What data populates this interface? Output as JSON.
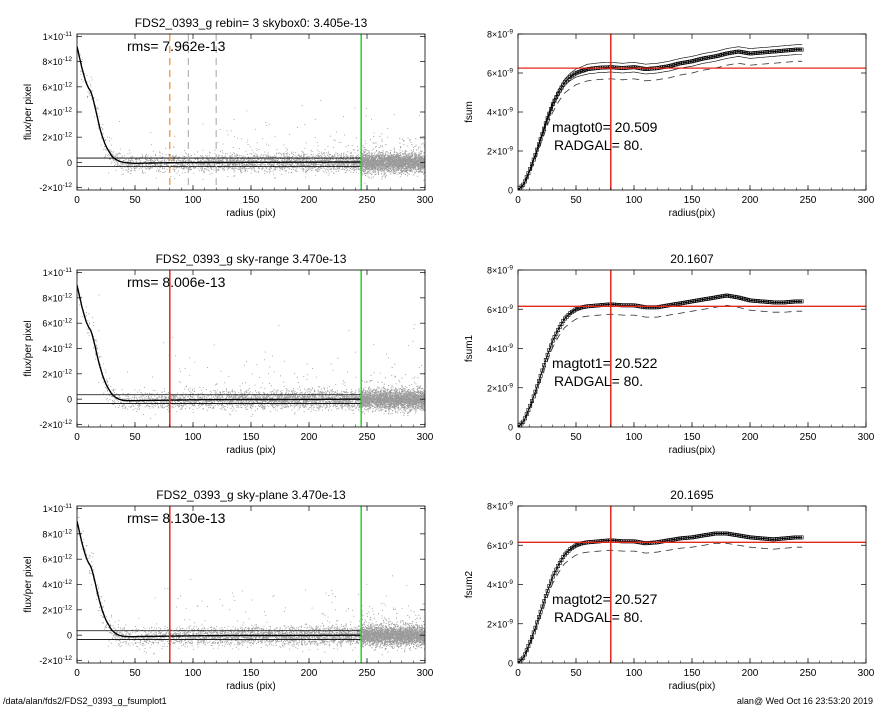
{
  "footer": {
    "path": "/data/alan/fds2/FDS2_0393_g_fsumplot1",
    "user_date": "alan@  Wed Oct 16 23:53:20 2019"
  },
  "colors": {
    "red_line": "#e8261c",
    "green_line": "#1ed81e",
    "orange_dash": "#f08c1e",
    "scatter": "#9a9a9a"
  },
  "chart_data": [
    {
      "type": "scatter",
      "title": "FDS2_0393_g rebin= 3    skybox0:  3.405e-13",
      "annotation": "rms= 7.962e-13",
      "xlabel": "radius (pix)",
      "ylabel": "flux/per pixel",
      "xlim": [
        0,
        300
      ],
      "ylim": [
        -2.2e-12,
        1.02e-11
      ],
      "xticks": [
        0,
        50,
        100,
        150,
        200,
        250,
        300
      ],
      "yticks": [
        {
          "value": 1e-11,
          "base": "1×10",
          "exp": "-11"
        },
        {
          "value": 8e-12,
          "base": "8×10",
          "exp": "-12"
        },
        {
          "value": 6e-12,
          "base": "6×10",
          "exp": "-12"
        },
        {
          "value": 4e-12,
          "base": "4×10",
          "exp": "-12"
        },
        {
          "value": 2e-12,
          "base": "2×10",
          "exp": "-12"
        },
        {
          "value": 0,
          "base": "0",
          "exp": ""
        },
        {
          "value": -2e-12,
          "base": "-2×10",
          "exp": "-12"
        }
      ],
      "profile_x": [
        0,
        2,
        4,
        6,
        8,
        10,
        12,
        14,
        16,
        18,
        20,
        22,
        24,
        26,
        28,
        30,
        33,
        36,
        40,
        45,
        50,
        60,
        80,
        100,
        150,
        200,
        245
      ],
      "profile_y": [
        9.2e-12,
        8.4e-12,
        7.6e-12,
        6.9e-12,
        6.3e-12,
        5.9e-12,
        5.6e-12,
        5e-12,
        4.2e-12,
        3.4e-12,
        2.6e-12,
        2e-12,
        1.5e-12,
        1.1e-12,
        8e-13,
        5e-13,
        2.5e-13,
        1e-13,
        0,
        -5e-14,
        -8e-14,
        -6e-14,
        -3e-14,
        -2e-14,
        0,
        1e-14,
        2e-14
      ],
      "hlines": [
        3.405e-13,
        -3.405e-13
      ],
      "vlines": [
        {
          "x": 80,
          "color": "#f08c1e",
          "style": "dashed"
        },
        {
          "x": 96,
          "color": "#b4b4b4",
          "style": "dashed"
        },
        {
          "x": 120,
          "color": "#b4b4b4",
          "style": "dashed"
        },
        {
          "x": 245,
          "color": "#1ed81e",
          "style": "solid"
        }
      ],
      "scatter_color": "#9a9a9a",
      "noise_sigma": 8e-13
    },
    {
      "type": "line",
      "title": "",
      "ylabel": "fsum",
      "xlabel": "radius(pix)",
      "xlim": [
        0,
        300
      ],
      "ylim": [
        0,
        8e-09
      ],
      "xticks": [
        0,
        50,
        100,
        150,
        200,
        250,
        300
      ],
      "yticks": [
        {
          "value": 8e-09,
          "base": "8×10",
          "exp": "-9"
        },
        {
          "value": 6e-09,
          "base": "6×10",
          "exp": "-9"
        },
        {
          "value": 4e-09,
          "base": "4×10",
          "exp": "-9"
        },
        {
          "value": 2e-09,
          "base": "2×10",
          "exp": "-9"
        },
        {
          "value": 0,
          "base": "0",
          "exp": ""
        }
      ],
      "annotations": [
        "magtot0=  20.509",
        "RADGAL=     80."
      ],
      "x": [
        0,
        5,
        10,
        15,
        20,
        25,
        30,
        35,
        40,
        45,
        50,
        55,
        60,
        70,
        80,
        90,
        100,
        110,
        120,
        130,
        140,
        150,
        160,
        170,
        180,
        190,
        200,
        210,
        220,
        230,
        240,
        245
      ],
      "y": [
        0,
        3e-10,
        1e-09,
        1.8e-09,
        2.7e-09,
        3.6e-09,
        4.4e-09,
        5e-09,
        5.5e-09,
        5.8e-09,
        6e-09,
        6.1e-09,
        6.2e-09,
        6.27e-09,
        6.3e-09,
        6.25e-09,
        6.3e-09,
        6.2e-09,
        6.25e-09,
        6.35e-09,
        6.5e-09,
        6.6e-09,
        6.75e-09,
        6.85e-09,
        7e-09,
        7.1e-09,
        7e-09,
        7.05e-09,
        7.1e-09,
        7.15e-09,
        7.2e-09,
        7.2e-09
      ],
      "band": 2.5e-10,
      "dashed_offset": 6e-10,
      "hline": 6.25e-09,
      "vline": 80,
      "marker_x_max": 250
    },
    {
      "type": "scatter",
      "title": "FDS2_0393_g sky-range  3.470e-13",
      "annotation": "rms= 8.006e-13",
      "xlabel": "radius (pix)",
      "ylabel": "flux/per pixel",
      "xlim": [
        0,
        300
      ],
      "ylim": [
        -2.2e-12,
        1.02e-11
      ],
      "xticks": [
        0,
        50,
        100,
        150,
        200,
        250,
        300
      ],
      "yticks": [
        {
          "value": 1e-11,
          "base": "1×10",
          "exp": "-11"
        },
        {
          "value": 8e-12,
          "base": "8×10",
          "exp": "-12"
        },
        {
          "value": 6e-12,
          "base": "6×10",
          "exp": "-12"
        },
        {
          "value": 4e-12,
          "base": "4×10",
          "exp": "-12"
        },
        {
          "value": 2e-12,
          "base": "2×10",
          "exp": "-12"
        },
        {
          "value": 0,
          "base": "0",
          "exp": ""
        },
        {
          "value": -2e-12,
          "base": "-2×10",
          "exp": "-12"
        }
      ],
      "profile_x": [
        0,
        2,
        4,
        6,
        8,
        10,
        12,
        14,
        16,
        18,
        20,
        22,
        24,
        26,
        28,
        30,
        33,
        36,
        40,
        45,
        50,
        60,
        80,
        100,
        150,
        200,
        245
      ],
      "profile_y": [
        9e-12,
        8.2e-12,
        7.4e-12,
        6.7e-12,
        6.1e-12,
        5.7e-12,
        5.4e-12,
        4.8e-12,
        4e-12,
        3.2e-12,
        2.5e-12,
        1.9e-12,
        1.4e-12,
        1e-12,
        7e-13,
        4e-13,
        1.5e-13,
        0,
        -1e-13,
        -1.2e-13,
        -1.2e-13,
        -1e-13,
        -8e-14,
        -5e-14,
        -3e-14,
        -2e-14,
        0
      ],
      "hlines": [
        3.47e-13,
        -3.47e-13
      ],
      "vlines": [
        {
          "x": 80,
          "color": "#e8261c",
          "style": "solid"
        },
        {
          "x": 245,
          "color": "#1ed81e",
          "style": "solid"
        }
      ],
      "scatter_color": "#9a9a9a",
      "noise_sigma": 8e-13
    },
    {
      "type": "line",
      "title": "20.1607",
      "ylabel": "fsum1",
      "xlabel": "radius(pix)",
      "xlim": [
        0,
        300
      ],
      "ylim": [
        0,
        8e-09
      ],
      "xticks": [
        0,
        50,
        100,
        150,
        200,
        250,
        300
      ],
      "yticks": [
        {
          "value": 8e-09,
          "base": "8×10",
          "exp": "-9"
        },
        {
          "value": 6e-09,
          "base": "6×10",
          "exp": "-9"
        },
        {
          "value": 4e-09,
          "base": "4×10",
          "exp": "-9"
        },
        {
          "value": 2e-09,
          "base": "2×10",
          "exp": "-9"
        },
        {
          "value": 0,
          "base": "0",
          "exp": ""
        }
      ],
      "annotations": [
        "magtot1=  20.522",
        "RADGAL=     80."
      ],
      "x": [
        0,
        5,
        10,
        15,
        20,
        25,
        30,
        35,
        40,
        45,
        50,
        55,
        60,
        70,
        80,
        90,
        100,
        110,
        120,
        130,
        140,
        150,
        160,
        170,
        180,
        190,
        200,
        210,
        220,
        230,
        240,
        245
      ],
      "y": [
        0,
        3e-10,
        1e-09,
        1.8e-09,
        2.7e-09,
        3.6e-09,
        4.4e-09,
        5e-09,
        5.5e-09,
        5.8e-09,
        6e-09,
        6.1e-09,
        6.15e-09,
        6.2e-09,
        6.25e-09,
        6.2e-09,
        6.2e-09,
        6.1e-09,
        6.1e-09,
        6.2e-09,
        6.3e-09,
        6.4e-09,
        6.5e-09,
        6.6e-09,
        6.7e-09,
        6.6e-09,
        6.45e-09,
        6.4e-09,
        6.35e-09,
        6.35e-09,
        6.4e-09,
        6.4e-09
      ],
      "band": 0,
      "dashed_offset": 5e-10,
      "hline": 6.15e-09,
      "vline": 80,
      "marker_x_max": 250
    },
    {
      "type": "scatter",
      "title": "FDS2_0393_g sky-plane  3.470e-13",
      "annotation": "rms= 8.130e-13",
      "xlabel": "radius (pix)",
      "ylabel": "flux/per pixel",
      "xlim": [
        0,
        300
      ],
      "ylim": [
        -2.2e-12,
        1.02e-11
      ],
      "xticks": [
        0,
        50,
        100,
        150,
        200,
        250,
        300
      ],
      "yticks": [
        {
          "value": 1e-11,
          "base": "1×10",
          "exp": "-11"
        },
        {
          "value": 8e-12,
          "base": "8×10",
          "exp": "-12"
        },
        {
          "value": 6e-12,
          "base": "6×10",
          "exp": "-12"
        },
        {
          "value": 4e-12,
          "base": "4×10",
          "exp": "-12"
        },
        {
          "value": 2e-12,
          "base": "2×10",
          "exp": "-12"
        },
        {
          "value": 0,
          "base": "0",
          "exp": ""
        },
        {
          "value": -2e-12,
          "base": "-2×10",
          "exp": "-12"
        }
      ],
      "profile_x": [
        0,
        2,
        4,
        6,
        8,
        10,
        12,
        14,
        16,
        18,
        20,
        22,
        24,
        26,
        28,
        30,
        33,
        36,
        40,
        45,
        50,
        60,
        80,
        100,
        150,
        200,
        245
      ],
      "profile_y": [
        9e-12,
        8.2e-12,
        7.4e-12,
        6.7e-12,
        6.1e-12,
        5.7e-12,
        5.4e-12,
        4.8e-12,
        4e-12,
        3.2e-12,
        2.5e-12,
        1.9e-12,
        1.4e-12,
        1e-12,
        7e-13,
        4e-13,
        1.5e-13,
        0,
        -1e-13,
        -1.2e-13,
        -1.2e-13,
        -1e-13,
        -8e-14,
        -5e-14,
        -3e-14,
        -2e-14,
        0
      ],
      "hlines": [
        3.47e-13,
        -3.47e-13
      ],
      "vlines": [
        {
          "x": 80,
          "color": "#e8261c",
          "style": "solid"
        },
        {
          "x": 245,
          "color": "#1ed81e",
          "style": "solid"
        }
      ],
      "scatter_color": "#9a9a9a",
      "noise_sigma": 8e-13
    },
    {
      "type": "line",
      "title": "20.1695",
      "ylabel": "fsum2",
      "xlabel": "radius(pix)",
      "xlim": [
        0,
        300
      ],
      "ylim": [
        0,
        8e-09
      ],
      "xticks": [
        0,
        50,
        100,
        150,
        200,
        250,
        300
      ],
      "yticks": [
        {
          "value": 8e-09,
          "base": "8×10",
          "exp": "-9"
        },
        {
          "value": 6e-09,
          "base": "6×10",
          "exp": "-9"
        },
        {
          "value": 4e-09,
          "base": "4×10",
          "exp": "-9"
        },
        {
          "value": 2e-09,
          "base": "2×10",
          "exp": "-9"
        },
        {
          "value": 0,
          "base": "0",
          "exp": ""
        }
      ],
      "annotations": [
        "magtot2=  20.527",
        "RADGAL=     80."
      ],
      "x": [
        0,
        5,
        10,
        15,
        20,
        25,
        30,
        35,
        40,
        45,
        50,
        55,
        60,
        70,
        80,
        90,
        100,
        110,
        120,
        130,
        140,
        150,
        160,
        170,
        180,
        190,
        200,
        210,
        220,
        230,
        240,
        245
      ],
      "y": [
        0,
        3e-10,
        1e-09,
        1.8e-09,
        2.7e-09,
        3.6e-09,
        4.4e-09,
        5e-09,
        5.5e-09,
        5.8e-09,
        6e-09,
        6.1e-09,
        6.15e-09,
        6.2e-09,
        6.25e-09,
        6.2e-09,
        6.2e-09,
        6.1e-09,
        6.15e-09,
        6.25e-09,
        6.35e-09,
        6.4e-09,
        6.5e-09,
        6.6e-09,
        6.6e-09,
        6.5e-09,
        6.4e-09,
        6.35e-09,
        6.3e-09,
        6.35e-09,
        6.4e-09,
        6.4e-09
      ],
      "band": 0,
      "dashed_offset": 5e-10,
      "hline": 6.15e-09,
      "vline": 80,
      "marker_x_max": 250
    }
  ]
}
